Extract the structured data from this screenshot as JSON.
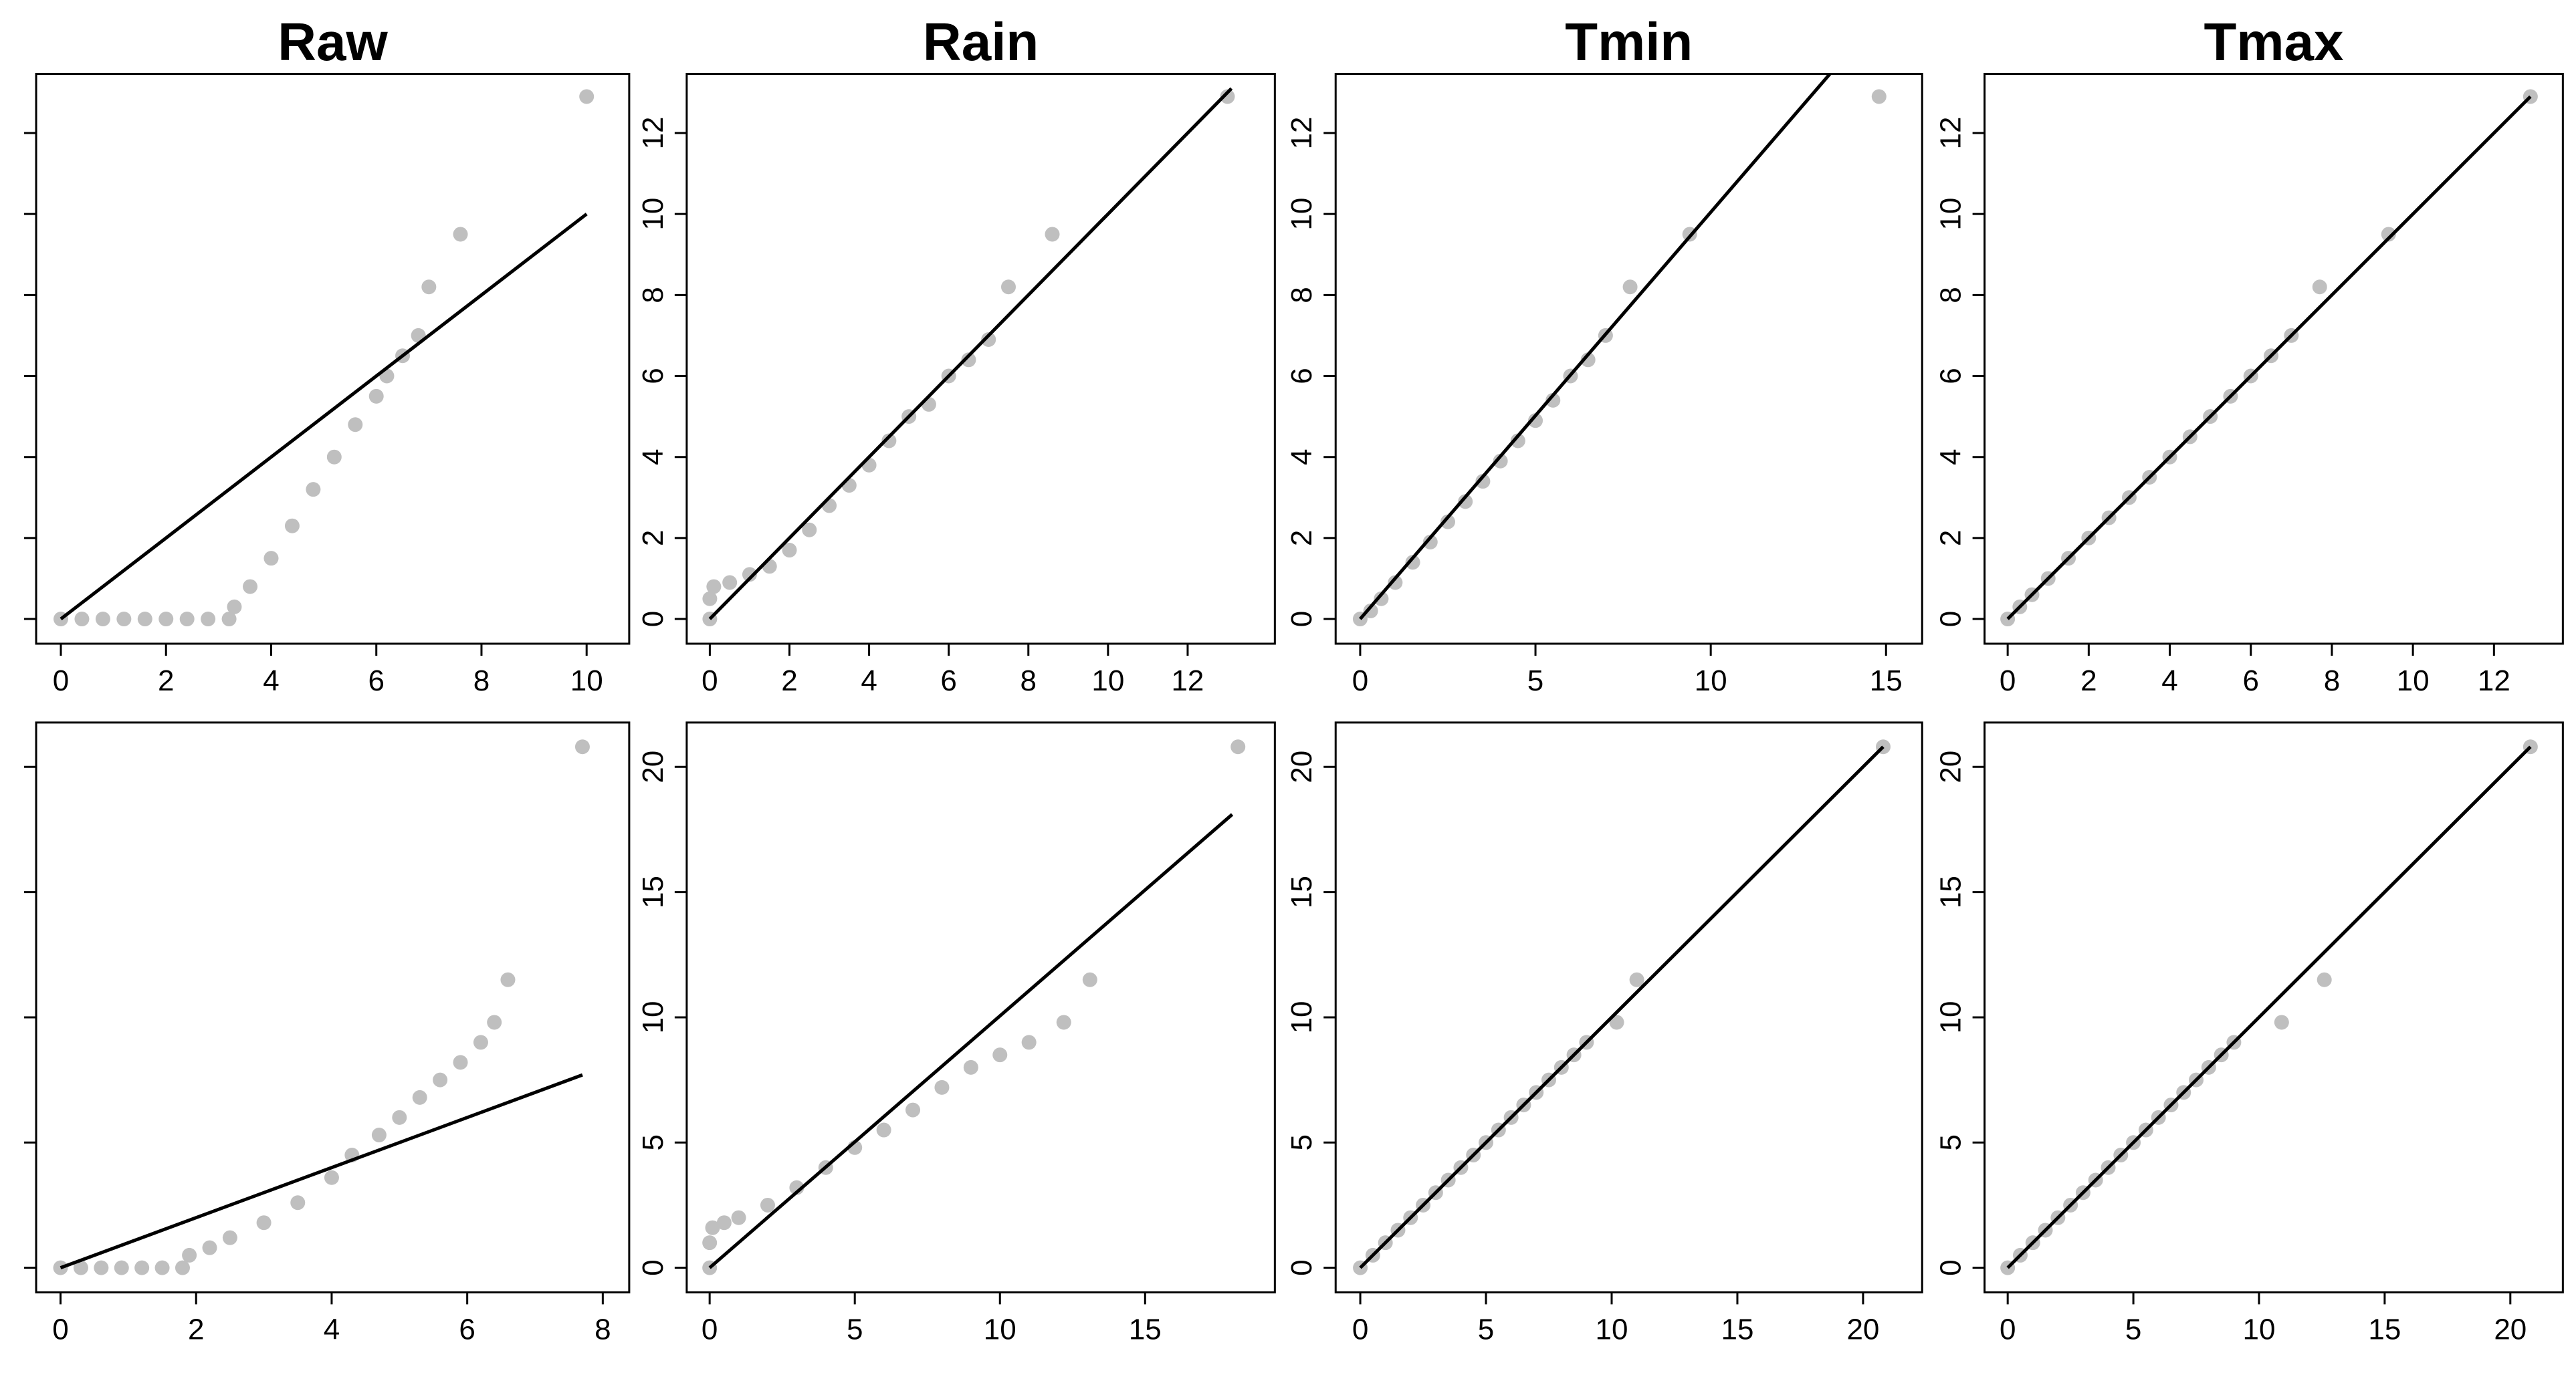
{
  "chart_data": [
    {
      "type": "scatter",
      "title": "Raw",
      "xlim": [
        -0.47,
        10.81
      ],
      "ylim": [
        -0.61,
        13.46
      ],
      "xticks": [
        0,
        2,
        4,
        6,
        8,
        10
      ],
      "yticks": [
        0,
        2,
        4,
        6,
        8,
        10,
        12
      ],
      "ytick_labels": false,
      "color": "#bfbfbf",
      "x": [
        0,
        0.4,
        0.8,
        1.2,
        1.6,
        2,
        2.4,
        2.8,
        3.2,
        3.3,
        3.6,
        4,
        4.4,
        4.8,
        5.2,
        5.6,
        6,
        6.2,
        6.5,
        6.8,
        7,
        7.6,
        10
      ],
      "values": [
        0,
        0,
        0,
        0,
        0,
        0,
        0,
        0,
        0,
        0.3,
        0.8,
        1.5,
        2.3,
        3.2,
        4,
        4.8,
        5.5,
        6,
        6.5,
        7,
        8.2,
        9.5,
        12.9
      ],
      "line": {
        "x": [
          0,
          10
        ],
        "y": [
          0,
          10
        ],
        "color": "#000000"
      }
    },
    {
      "type": "scatter",
      "title": "Rain",
      "xlim": [
        -0.58,
        14.19
      ],
      "ylim": [
        -0.61,
        13.46
      ],
      "xticks": [
        0,
        2,
        4,
        6,
        8,
        10,
        12
      ],
      "yticks": [
        0,
        2,
        4,
        6,
        8,
        10,
        12
      ],
      "ytick_labels": true,
      "color": "#bfbfbf",
      "x": [
        0,
        0,
        0.1,
        0.5,
        1,
        1.5,
        2,
        2.5,
        3,
        3.5,
        4,
        4.5,
        5,
        5.5,
        6,
        6.5,
        7,
        7.5,
        8.6,
        13
      ],
      "values": [
        0,
        0.5,
        0.8,
        0.9,
        1.1,
        1.3,
        1.7,
        2.2,
        2.8,
        3.3,
        3.8,
        4.4,
        5,
        5.3,
        6,
        6.4,
        6.9,
        8.2,
        9.5,
        12.9
      ],
      "line": {
        "x": [
          0,
          13.1
        ],
        "y": [
          0,
          13.1
        ],
        "color": "#000000"
      }
    },
    {
      "type": "scatter",
      "title": "Tmin",
      "xlim": [
        -0.7,
        16.03
      ],
      "ylim": [
        -0.61,
        13.46
      ],
      "xticks": [
        0,
        5,
        10,
        15
      ],
      "yticks": [
        0,
        2,
        4,
        6,
        8,
        10,
        12
      ],
      "ytick_labels": true,
      "color": "#bfbfbf",
      "x": [
        0,
        0.3,
        0.6,
        1,
        1.5,
        2,
        2.5,
        3,
        3.5,
        4,
        4.5,
        5,
        5.5,
        6,
        6.5,
        7,
        7.7,
        9.4,
        14.8
      ],
      "values": [
        0,
        0.2,
        0.5,
        0.9,
        1.4,
        1.9,
        2.4,
        2.9,
        3.4,
        3.9,
        4.4,
        4.9,
        5.4,
        6,
        6.4,
        7,
        8.2,
        9.5,
        12.9
      ],
      "line": {
        "x": [
          0,
          13.4
        ],
        "y": [
          0,
          13.46
        ],
        "color": "#000000"
      }
    },
    {
      "type": "scatter",
      "title": "Tmax",
      "xlim": [
        -0.57,
        13.7
      ],
      "ylim": [
        -0.61,
        13.46
      ],
      "xticks": [
        0,
        2,
        4,
        6,
        8,
        10,
        12
      ],
      "yticks": [
        0,
        2,
        4,
        6,
        8,
        10,
        12
      ],
      "ytick_labels": true,
      "color": "#bfbfbf",
      "x": [
        0,
        0.3,
        0.6,
        1,
        1.5,
        2,
        2.5,
        3,
        3.5,
        4,
        4.5,
        5,
        5.5,
        6,
        6.5,
        7,
        7.7,
        9.4,
        12.9
      ],
      "values": [
        0,
        0.3,
        0.6,
        1,
        1.5,
        2,
        2.5,
        3,
        3.5,
        4,
        4.5,
        5,
        5.5,
        6,
        6.5,
        7,
        8.2,
        9.5,
        12.9
      ],
      "line": {
        "x": [
          0,
          12.9
        ],
        "y": [
          0,
          12.9
        ],
        "color": "#000000"
      }
    },
    {
      "type": "scatter",
      "xlim": [
        -0.36,
        8.39
      ],
      "ylim": [
        -0.98,
        21.77
      ],
      "xticks": [
        0,
        2,
        4,
        6,
        8
      ],
      "yticks": [
        0,
        5,
        10,
        15,
        20
      ],
      "ytick_labels": false,
      "color": "#bfbfbf",
      "x": [
        0,
        0.3,
        0.6,
        0.9,
        1.2,
        1.5,
        1.8,
        1.9,
        2.2,
        2.5,
        3,
        3.5,
        4,
        4.3,
        4.7,
        5,
        5.3,
        5.6,
        5.9,
        6.2,
        6.4,
        6.6,
        7.7
      ],
      "values": [
        0,
        0,
        0,
        0,
        0,
        0,
        0,
        0.5,
        0.8,
        1.2,
        1.8,
        2.6,
        3.6,
        4.5,
        5.3,
        6,
        6.8,
        7.5,
        8.2,
        9,
        9.8,
        11.5,
        20.8
      ],
      "line": {
        "x": [
          0,
          7.7
        ],
        "y": [
          0,
          7.7
        ],
        "color": "#000000"
      }
    },
    {
      "type": "scatter",
      "xlim": [
        -0.79,
        19.47
      ],
      "ylim": [
        -0.98,
        21.77
      ],
      "xticks": [
        0,
        5,
        10,
        15
      ],
      "yticks": [
        0,
        5,
        10,
        15,
        20
      ],
      "ytick_labels": true,
      "color": "#bfbfbf",
      "x": [
        0,
        0,
        0.1,
        0.5,
        1,
        2,
        3,
        4,
        5,
        6,
        7,
        8,
        9,
        10,
        11,
        12.2,
        13.1,
        18.2
      ],
      "values": [
        0,
        1,
        1.6,
        1.8,
        2,
        2.5,
        3.2,
        4,
        4.8,
        5.5,
        6.3,
        7.2,
        8,
        8.5,
        9,
        9.8,
        11.5,
        20.8
      ],
      "line": {
        "x": [
          0,
          18
        ],
        "y": [
          0,
          18.1
        ],
        "color": "#000000"
      }
    },
    {
      "type": "scatter",
      "xlim": [
        -0.98,
        22.35
      ],
      "ylim": [
        -0.98,
        21.77
      ],
      "xticks": [
        0,
        5,
        10,
        15,
        20
      ],
      "yticks": [
        0,
        5,
        10,
        15,
        20
      ],
      "ytick_labels": true,
      "color": "#bfbfbf",
      "x": [
        0,
        0.5,
        1,
        1.5,
        2,
        2.5,
        3,
        3.5,
        4,
        4.5,
        5,
        5.5,
        6,
        6.5,
        7,
        7.5,
        8,
        8.5,
        9,
        10.2,
        11,
        20.8
      ],
      "values": [
        0,
        0.5,
        1,
        1.5,
        2,
        2.5,
        3,
        3.5,
        4,
        4.5,
        5,
        5.5,
        6,
        6.5,
        7,
        7.5,
        8,
        8.5,
        9,
        9.8,
        11.5,
        20.8
      ],
      "line": {
        "x": [
          0,
          20.8
        ],
        "y": [
          0,
          20.8
        ],
        "color": "#000000"
      }
    },
    {
      "type": "scatter",
      "xlim": [
        -0.92,
        22.09
      ],
      "ylim": [
        -0.98,
        21.77
      ],
      "xticks": [
        0,
        5,
        10,
        15,
        20
      ],
      "yticks": [
        0,
        5,
        10,
        15,
        20
      ],
      "ytick_labels": true,
      "color": "#bfbfbf",
      "x": [
        0,
        0.5,
        1,
        1.5,
        2,
        2.5,
        3,
        3.5,
        4,
        4.5,
        5,
        5.5,
        6,
        6.5,
        7,
        7.5,
        8,
        8.5,
        9,
        10.9,
        12.6,
        20.8
      ],
      "values": [
        0,
        0.5,
        1,
        1.5,
        2,
        2.5,
        3,
        3.5,
        4,
        4.5,
        5,
        5.5,
        6,
        6.5,
        7,
        7.5,
        8,
        8.5,
        9,
        9.8,
        11.5,
        20.8
      ],
      "line": {
        "x": [
          0,
          20.8
        ],
        "y": [
          0,
          20.8
        ],
        "color": "#000000"
      }
    }
  ]
}
